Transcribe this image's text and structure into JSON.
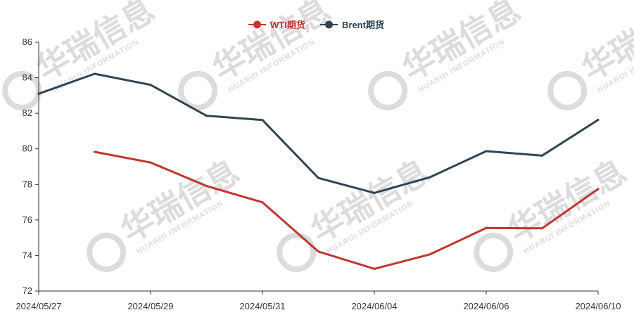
{
  "chart_data": {
    "type": "line",
    "title": "",
    "xlabel": "",
    "ylabel": "",
    "x": [
      "2024/05/27",
      "2024/05/28",
      "2024/05/29",
      "2024/05/30",
      "2024/05/31",
      "2024/06/03",
      "2024/06/04",
      "2024/06/05",
      "2024/06/06",
      "2024/06/07",
      "2024/06/10"
    ],
    "x_tick_labels": [
      "2024/05/27",
      "2024/05/29",
      "2024/05/31",
      "2024/06/04",
      "2024/06/06",
      "2024/06/10"
    ],
    "ylim": [
      72,
      86
    ],
    "y_ticks": [
      72,
      74,
      76,
      78,
      80,
      82,
      84,
      86
    ],
    "legend_position": "top-center",
    "grid": false,
    "series": [
      {
        "name": "WTI期货",
        "color": "#c23531",
        "values": [
          null,
          79.83,
          79.23,
          77.91,
          76.99,
          74.22,
          73.25,
          74.07,
          75.55,
          75.53,
          77.74
        ]
      },
      {
        "name": "Brent期货",
        "color": "#2f4554",
        "values": [
          83.1,
          84.22,
          83.6,
          81.86,
          81.62,
          78.36,
          77.52,
          78.41,
          79.87,
          79.62,
          81.63
        ]
      }
    ]
  },
  "watermark": {
    "cn_text": "华瑞信息",
    "en_text": "HUARUI INFORMATION"
  }
}
